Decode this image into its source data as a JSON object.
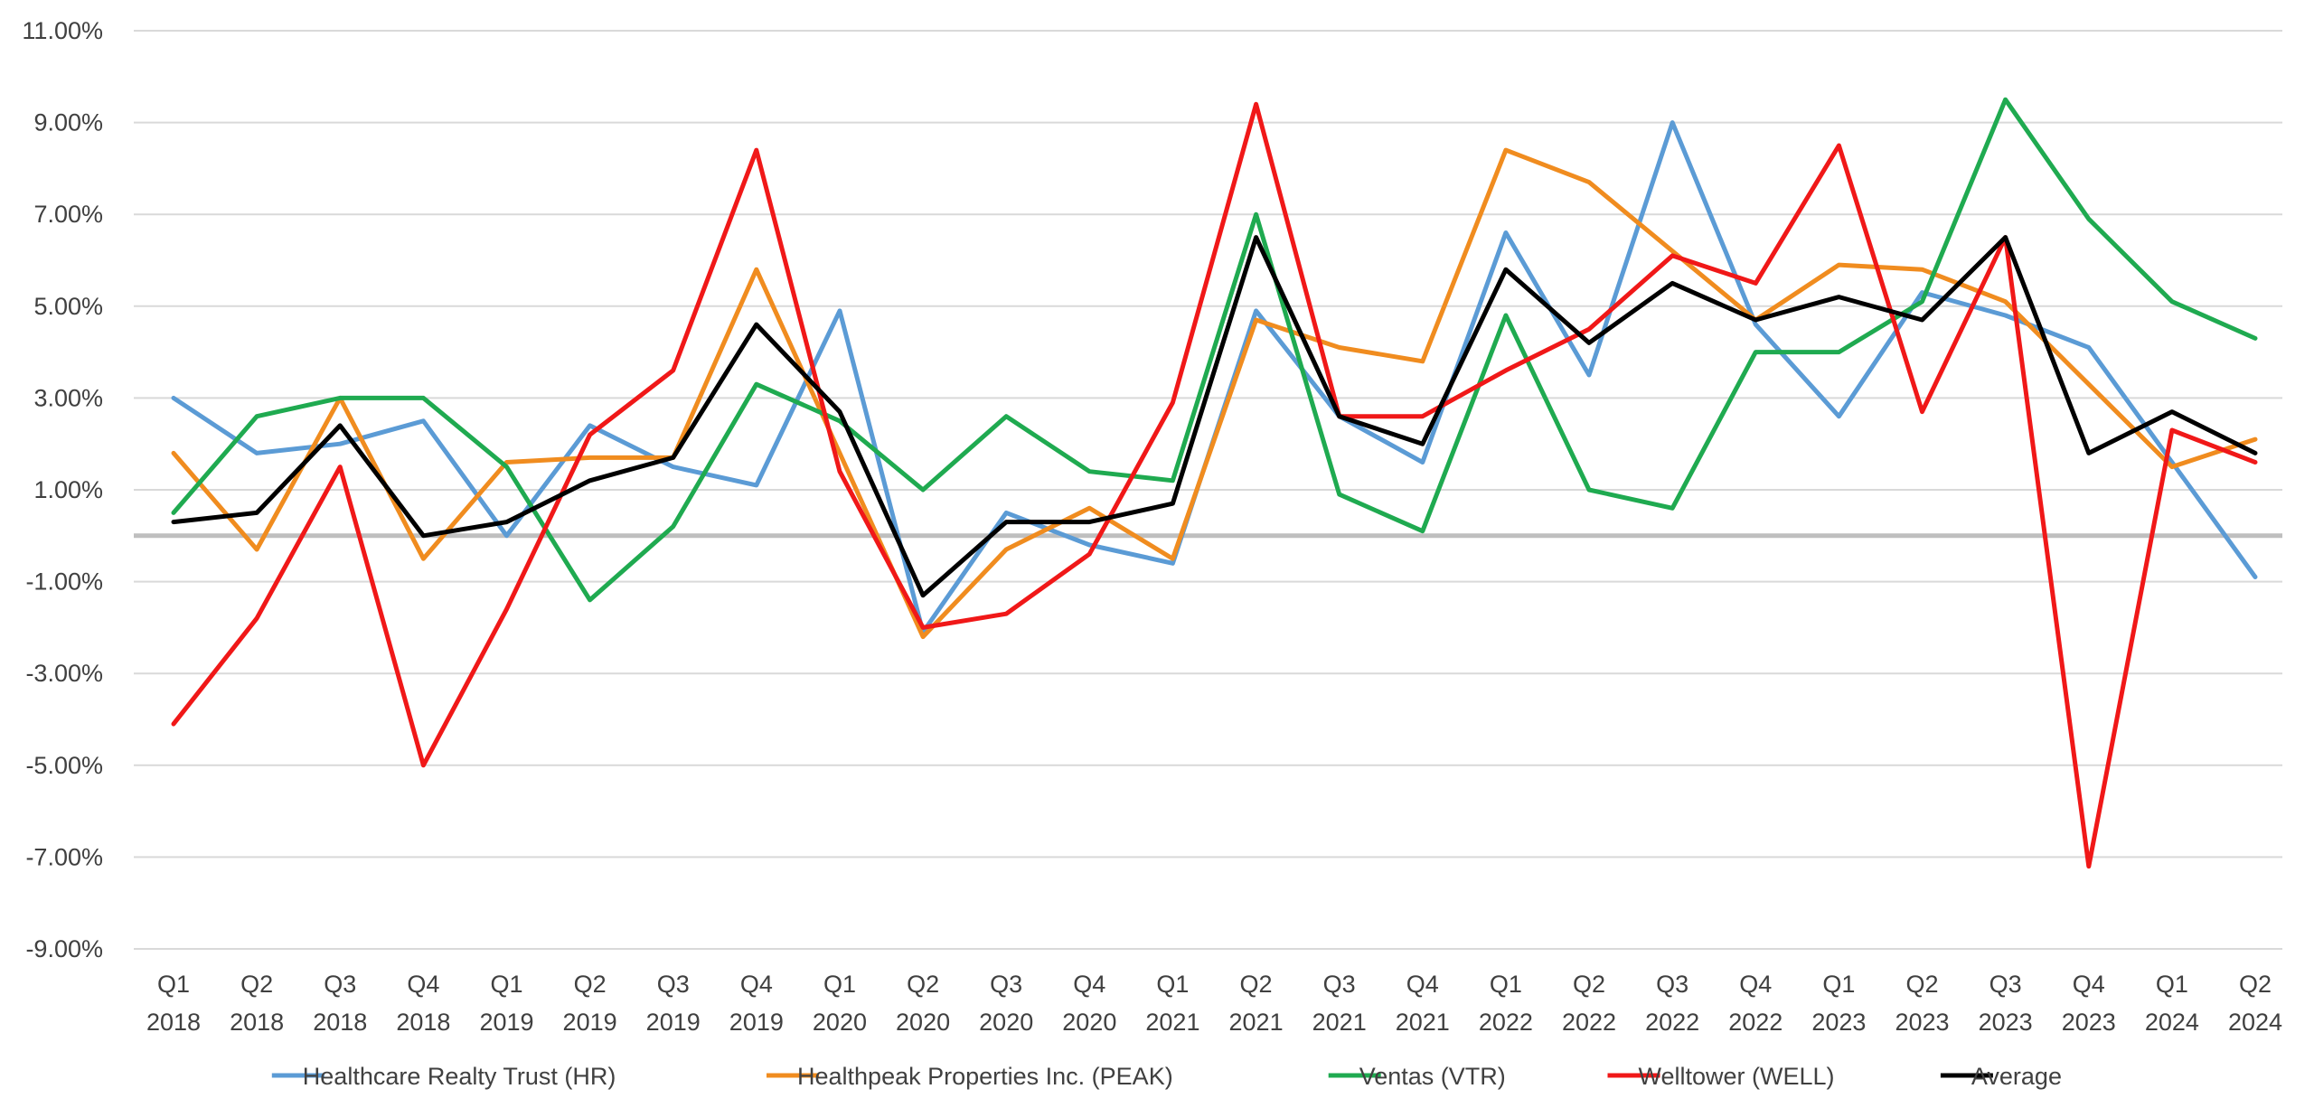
{
  "chart_data": {
    "type": "line",
    "title": "",
    "xlabel": "",
    "ylabel": "",
    "ylim": [
      -0.09,
      0.11
    ],
    "y_tick_labels": [
      "11.00%",
      "9.00%",
      "7.00%",
      "5.00%",
      "3.00%",
      "1.00%",
      "-1.00%",
      "-3.00%",
      "-5.00%",
      "-7.00%",
      "-9.00%"
    ],
    "y_tick_values": [
      0.11,
      0.09,
      0.07,
      0.05,
      0.03,
      0.01,
      -0.01,
      -0.03,
      -0.05,
      -0.07,
      -0.09
    ],
    "grid": true,
    "legend_position": "bottom",
    "categories": [
      [
        "Q1",
        "2018"
      ],
      [
        "Q2",
        "2018"
      ],
      [
        "Q3",
        "2018"
      ],
      [
        "Q4",
        "2018"
      ],
      [
        "Q1",
        "2019"
      ],
      [
        "Q2",
        "2019"
      ],
      [
        "Q3",
        "2019"
      ],
      [
        "Q4",
        "2019"
      ],
      [
        "Q1",
        "2020"
      ],
      [
        "Q2",
        "2020"
      ],
      [
        "Q3",
        "2020"
      ],
      [
        "Q4",
        "2020"
      ],
      [
        "Q1",
        "2021"
      ],
      [
        "Q2",
        "2021"
      ],
      [
        "Q3",
        "2021"
      ],
      [
        "Q4",
        "2021"
      ],
      [
        "Q1",
        "2022"
      ],
      [
        "Q2",
        "2022"
      ],
      [
        "Q3",
        "2022"
      ],
      [
        "Q4",
        "2022"
      ],
      [
        "Q1",
        "2023"
      ],
      [
        "Q2",
        "2023"
      ],
      [
        "Q3",
        "2023"
      ],
      [
        "Q4",
        "2023"
      ],
      [
        "Q1",
        "2024"
      ],
      [
        "Q2",
        "2024"
      ]
    ],
    "series": [
      {
        "name": "Healthcare Realty Trust (HR)",
        "color": "#5B9BD5",
        "values": [
          0.03,
          0.018,
          0.02,
          0.025,
          0.0,
          0.024,
          0.015,
          0.011,
          0.049,
          -0.021,
          0.005,
          -0.002,
          -0.006,
          0.049,
          0.026,
          0.016,
          0.066,
          0.035,
          0.09,
          0.046,
          0.026,
          0.053,
          0.048,
          0.041,
          0.016,
          -0.009
        ]
      },
      {
        "name": "Healthpeak Properties Inc. (PEAK)",
        "color": "#F08C1F",
        "values": [
          0.018,
          -0.003,
          0.03,
          -0.005,
          0.016,
          0.017,
          0.017,
          0.058,
          0.018,
          -0.022,
          -0.003,
          0.006,
          -0.005,
          0.047,
          0.041,
          0.038,
          0.084,
          0.077,
          0.062,
          0.047,
          0.059,
          0.058,
          0.051,
          0.033,
          0.015,
          0.021
        ]
      },
      {
        "name": "Ventas (VTR)",
        "color": "#1FAA50",
        "values": [
          0.005,
          0.026,
          0.03,
          0.03,
          0.015,
          -0.014,
          0.002,
          0.033,
          0.025,
          0.01,
          0.026,
          0.014,
          0.012,
          0.07,
          0.009,
          0.001,
          0.048,
          0.01,
          0.006,
          0.04,
          0.04,
          0.051,
          0.095,
          0.069,
          0.051,
          0.043
        ]
      },
      {
        "name": "Welltower (WELL)",
        "color": "#F01818",
        "values": [
          -0.041,
          -0.018,
          0.015,
          -0.05,
          -0.016,
          0.022,
          0.036,
          0.084,
          0.014,
          -0.02,
          -0.017,
          -0.004,
          0.029,
          0.094,
          0.026,
          0.026,
          0.036,
          0.045,
          0.061,
          0.055,
          0.085,
          0.027,
          0.065,
          -0.072,
          0.023,
          0.016
        ]
      },
      {
        "name": "Average",
        "color": "#000000",
        "values": [
          0.003,
          0.005,
          0.024,
          0.0,
          0.003,
          0.012,
          0.017,
          0.046,
          0.027,
          -0.013,
          0.003,
          0.003,
          0.007,
          0.065,
          0.026,
          0.02,
          0.058,
          0.042,
          0.055,
          0.047,
          0.052,
          0.047,
          0.065,
          0.018,
          0.027,
          0.018
        ]
      }
    ]
  }
}
